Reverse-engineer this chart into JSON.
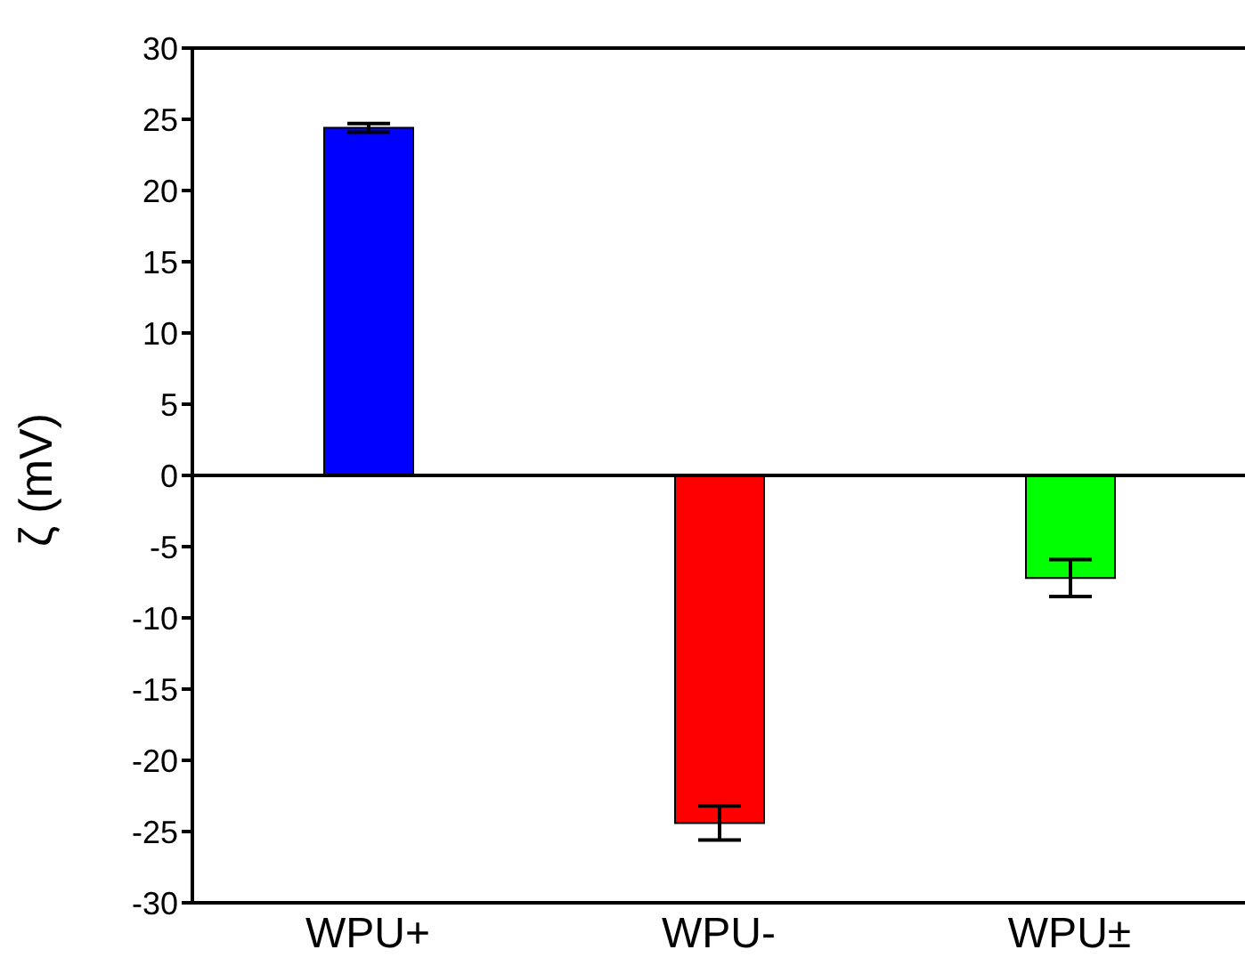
{
  "chart_data": {
    "type": "bar",
    "ylabel": "ζ (mV)",
    "categories": [
      "WPU+",
      "WPU-",
      "WPU±"
    ],
    "values": [
      24.4,
      -24.4,
      -7.2
    ],
    "colors": [
      "#0000ff",
      "#ff0000",
      "#00ff00"
    ],
    "errors": [
      0.3,
      1.2,
      1.3
    ],
    "ylim": [
      -30,
      30
    ],
    "yticks": [
      -30,
      -25,
      -20,
      -15,
      -10,
      -5,
      0,
      5,
      10,
      15,
      20,
      25,
      30
    ],
    "ref_lines": [
      {
        "axis": "y",
        "value": 0,
        "color": "#000000"
      }
    ],
    "grid": false,
    "legend": false
  }
}
